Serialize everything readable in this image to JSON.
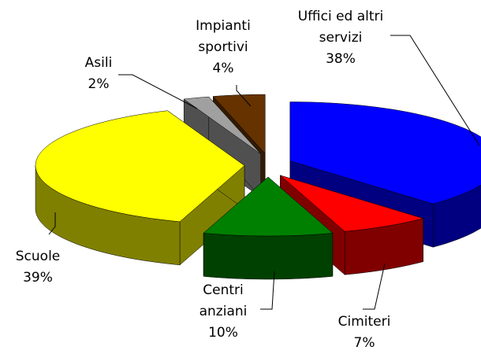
{
  "chart_data": {
    "type": "pie3d",
    "categories": [
      "Uffici ed altri servizi",
      "Cimiteri",
      "Centri anziani",
      "Scuole",
      "Asili",
      "Impianti sportivi"
    ],
    "values": [
      38,
      7,
      10,
      39,
      2,
      4
    ],
    "value_labels": [
      "38%",
      "7%",
      "10%",
      "39%",
      "2%",
      "4%"
    ],
    "colors": [
      "#0000ff",
      "#ff0000",
      "#008000",
      "#ffff00",
      "#a0a0a0",
      "#663300"
    ]
  }
}
